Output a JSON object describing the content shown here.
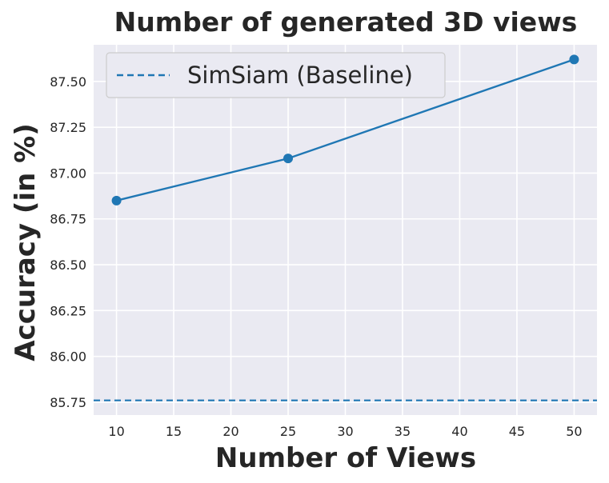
{
  "chart_data": {
    "type": "line",
    "title": "Number of generated 3D views",
    "xlabel": "Number of Views",
    "ylabel": "Accuracy (in %)",
    "xlim": [
      8,
      52
    ],
    "ylim": [
      85.68,
      87.7
    ],
    "x_ticks": [
      10,
      15,
      20,
      25,
      30,
      35,
      40,
      45,
      50
    ],
    "y_ticks": [
      85.75,
      86.0,
      86.25,
      86.5,
      86.75,
      87.0,
      87.25,
      87.5
    ],
    "y_tick_labels": [
      "85.75",
      "86.00",
      "86.25",
      "86.50",
      "86.75",
      "87.00",
      "87.25",
      "87.50"
    ],
    "series": [
      {
        "x": [
          10,
          25,
          50
        ],
        "values": [
          86.85,
          87.08,
          87.62
        ],
        "color": "#1f77b4",
        "marker": "circle"
      }
    ],
    "baseline": {
      "name": "SimSiam (Baseline)",
      "value": 85.76,
      "color": "#1f77b4",
      "style": "dashed"
    },
    "legend_position": "top-left",
    "grid": true,
    "background": "#eaeaf2"
  }
}
